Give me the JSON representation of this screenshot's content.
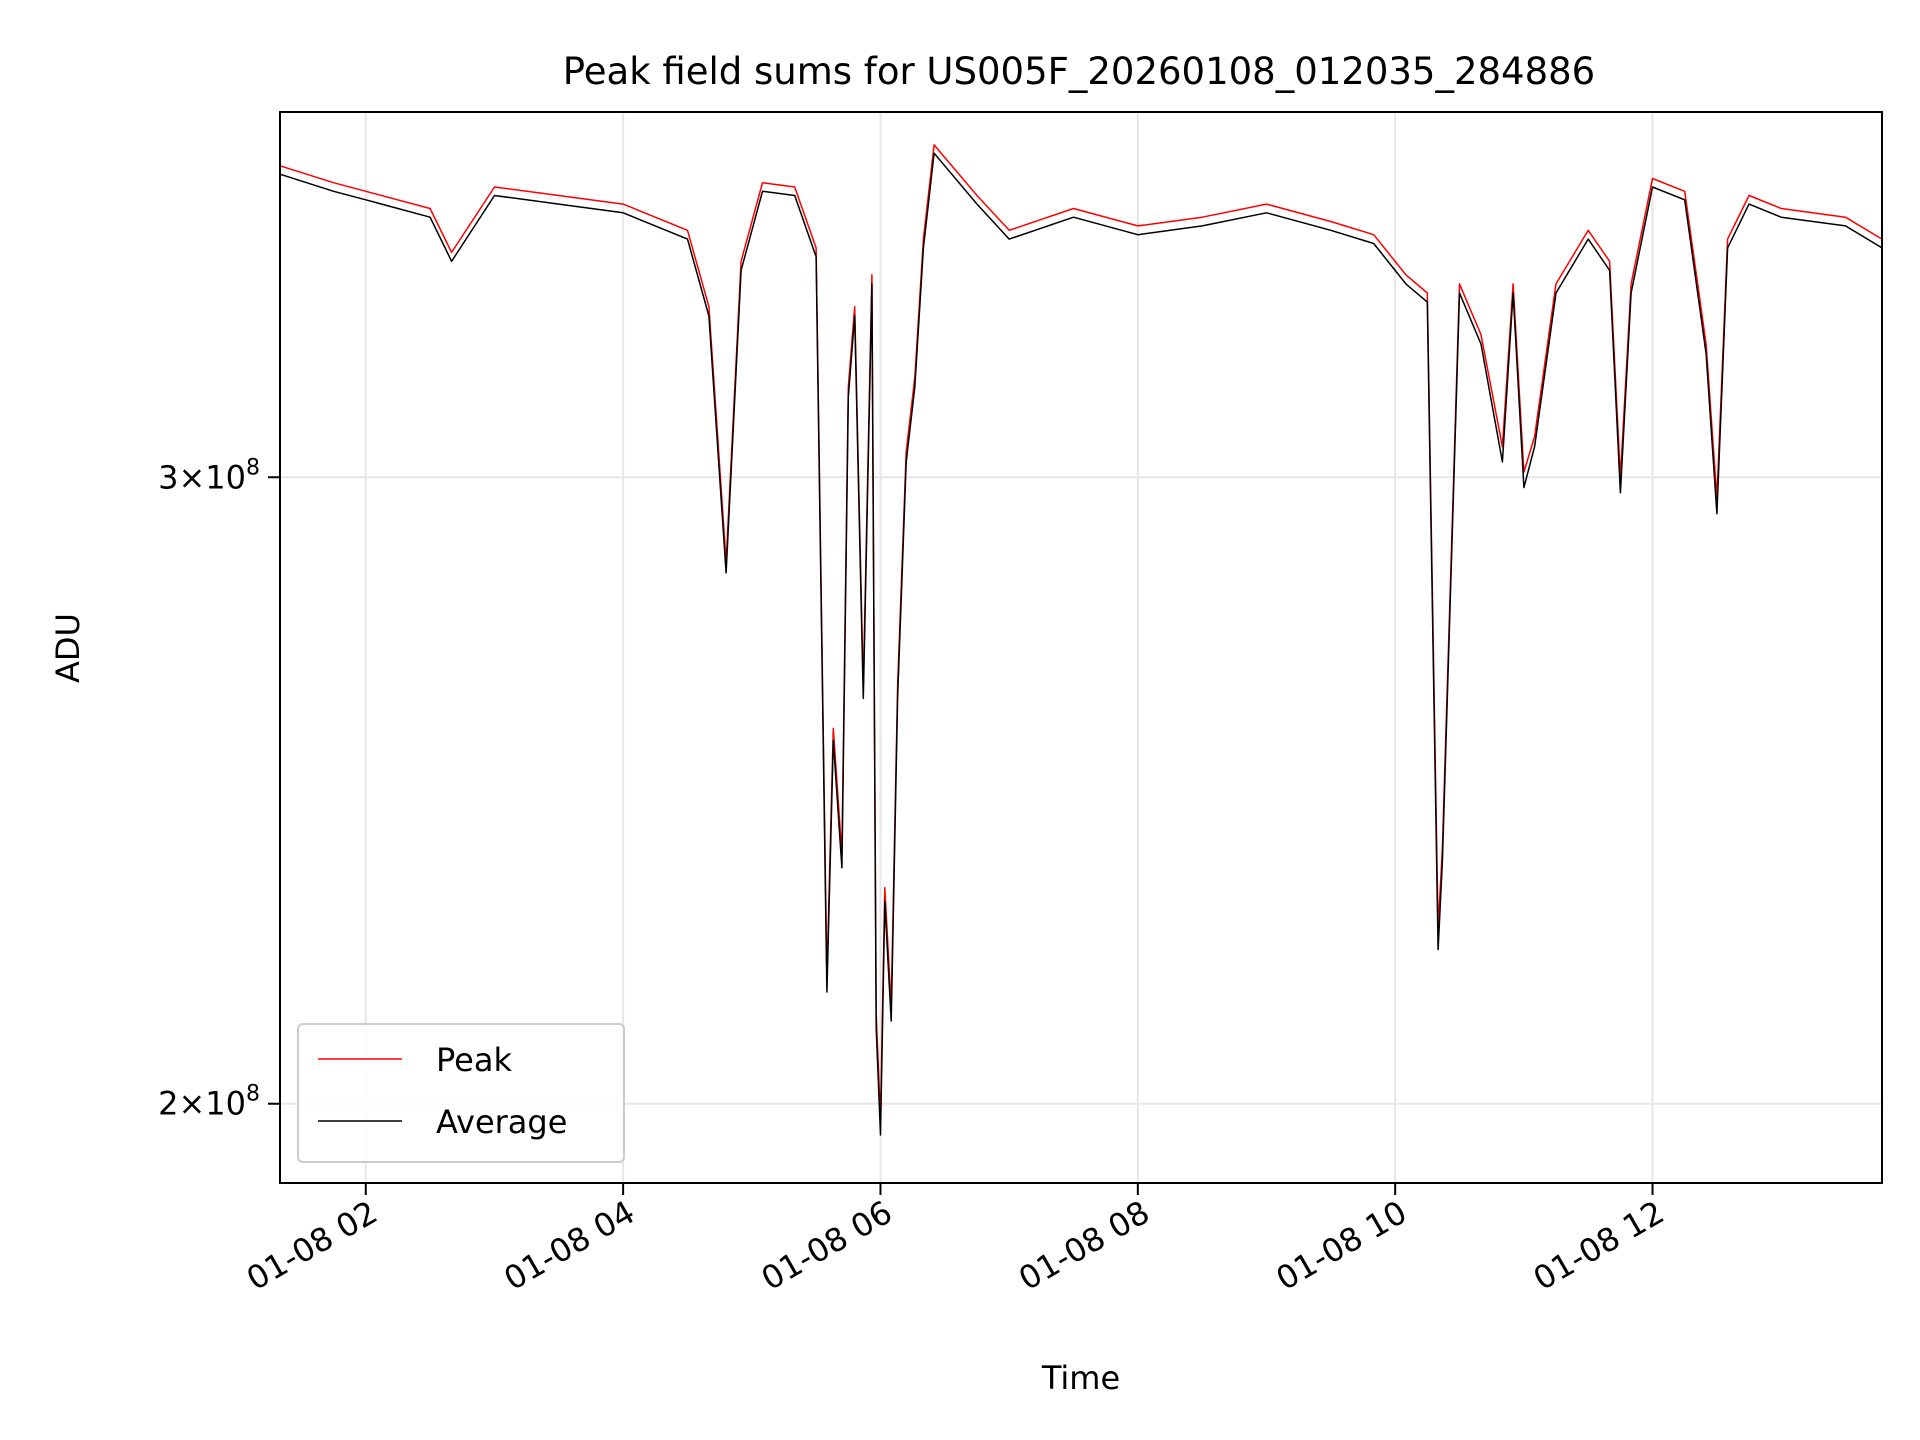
{
  "chart_data": {
    "type": "line",
    "title": "Peak field sums for US005F_20260108_012035_284886",
    "xlabel": "Time",
    "ylabel": "ADU",
    "x_scale": "time",
    "y_scale": "log",
    "xlim": [
      "01-08 01:20",
      "01-08 13:47"
    ],
    "ylim": [
      190000000,
      380000000
    ],
    "x_ticks": [
      {
        "value": "01-08 02:00",
        "label": "01-08 02"
      },
      {
        "value": "01-08 04:00",
        "label": "01-08 04"
      },
      {
        "value": "01-08 06:00",
        "label": "01-08 06"
      },
      {
        "value": "01-08 08:00",
        "label": "01-08 08"
      },
      {
        "value": "01-08 10:00",
        "label": "01-08 10"
      },
      {
        "value": "01-08 12:00",
        "label": "01-08 12"
      }
    ],
    "y_ticks": [
      {
        "value": 200000000,
        "mantissa": "2",
        "base": "10",
        "exp": "8"
      },
      {
        "value": 300000000,
        "mantissa": "3",
        "base": "10",
        "exp": "8"
      }
    ],
    "grid": true,
    "legend_position": "lower-left",
    "x": [
      "01-08 01:20",
      "01-08 01:45",
      "01-08 02:00",
      "01-08 02:30",
      "01-08 02:40",
      "01-08 03:00",
      "01-08 03:30",
      "01-08 04:00",
      "01-08 04:30",
      "01-08 04:40",
      "01-08 04:48",
      "01-08 04:55",
      "01-08 05:05",
      "01-08 05:20",
      "01-08 05:30",
      "01-08 05:35",
      "01-08 05:38",
      "01-08 05:42",
      "01-08 05:45",
      "01-08 05:48",
      "01-08 05:52",
      "01-08 05:56",
      "01-08 05:58",
      "01-08 06:00",
      "01-08 06:02",
      "01-08 06:05",
      "01-08 06:08",
      "01-08 06:12",
      "01-08 06:16",
      "01-08 06:20",
      "01-08 06:25",
      "01-08 06:45",
      "01-08 07:00",
      "01-08 07:30",
      "01-08 08:00",
      "01-08 08:30",
      "01-08 09:00",
      "01-08 09:30",
      "01-08 09:50",
      "01-08 10:05",
      "01-08 10:15",
      "01-08 10:20",
      "01-08 10:22",
      "01-08 10:30",
      "01-08 10:40",
      "01-08 10:50",
      "01-08 10:55",
      "01-08 11:00",
      "01-08 11:05",
      "01-08 11:15",
      "01-08 11:30",
      "01-08 11:40",
      "01-08 11:45",
      "01-08 11:50",
      "01-08 12:00",
      "01-08 12:15",
      "01-08 12:25",
      "01-08 12:30",
      "01-08 12:35",
      "01-08 12:45",
      "01-08 13:00",
      "01-08 13:30",
      "01-08 13:47"
    ],
    "series": [
      {
        "name": "Peak",
        "color": "#ff0000",
        "values": [
          367000000,
          363000000,
          361000000,
          357000000,
          347000000,
          362000000,
          360000000,
          358000000,
          352000000,
          335000000,
          284000000,
          345000000,
          363000000,
          362000000,
          348000000,
          217000000,
          255000000,
          235000000,
          318000000,
          335000000,
          262000000,
          342000000,
          212000000,
          198000000,
          230000000,
          213000000,
          262000000,
          305000000,
          320000000,
          350000000,
          372000000,
          360000000,
          352000000,
          357000000,
          353000000,
          355000000,
          358000000,
          354000000,
          351000000,
          342000000,
          338000000,
          224000000,
          236000000,
          340000000,
          329000000,
          306000000,
          340000000,
          301000000,
          308000000,
          340000000,
          352000000,
          345000000,
          300000000,
          340000000,
          364000000,
          361000000,
          327000000,
          296000000,
          350000000,
          360000000,
          357000000,
          355000000,
          350000000
        ]
      },
      {
        "name": "Average",
        "color": "#000000",
        "values": [
          365000000,
          361000000,
          359000000,
          355000000,
          345000000,
          360000000,
          358000000,
          356000000,
          350000000,
          333000000,
          282000000,
          343000000,
          361000000,
          360000000,
          346000000,
          215000000,
          253000000,
          233000000,
          316000000,
          333000000,
          260000000,
          340000000,
          210000000,
          196000000,
          228000000,
          211000000,
          260000000,
          303000000,
          318000000,
          348000000,
          370000000,
          358000000,
          350000000,
          355000000,
          351000000,
          353000000,
          356000000,
          352000000,
          349000000,
          340000000,
          336000000,
          221000000,
          234000000,
          338000000,
          327000000,
          303000000,
          338000000,
          298000000,
          306000000,
          338000000,
          350000000,
          343000000,
          297000000,
          338000000,
          362000000,
          359000000,
          325000000,
          293000000,
          348000000,
          358000000,
          355000000,
          353000000,
          348000000
        ]
      }
    ]
  }
}
